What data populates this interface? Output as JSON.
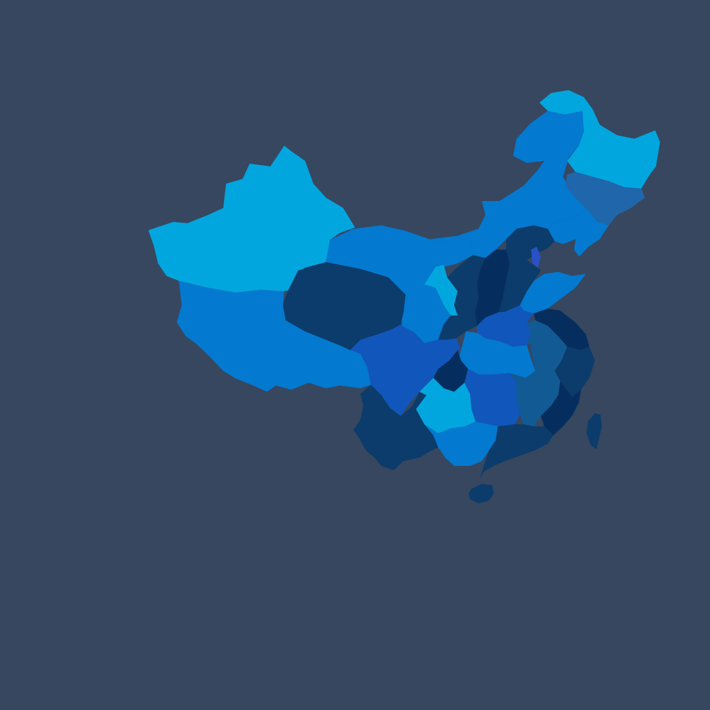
{
  "map": {
    "background_color": "#36475f",
    "palette": {
      "sky": "#02a6df",
      "azure": "#0379d0",
      "cobalt": "#1156bb",
      "steel": "#2066ab",
      "slate": "#125a93",
      "navy": "#0b3c6b",
      "midnight": "#052e5e",
      "indigo": "#2b51c7"
    },
    "regions": [
      {
        "name": "xinjiang",
        "color_key": "sky"
      },
      {
        "name": "tibet",
        "color_key": "azure"
      },
      {
        "name": "qinghai",
        "color_key": "navy"
      },
      {
        "name": "gansu",
        "color_key": "azure"
      },
      {
        "name": "inner-mongolia",
        "color_key": "azure"
      },
      {
        "name": "heilongjiang",
        "color_key": "sky"
      },
      {
        "name": "jilin",
        "color_key": "steel"
      },
      {
        "name": "liaoning",
        "color_key": "azure"
      },
      {
        "name": "hebei",
        "color_key": "navy"
      },
      {
        "name": "beijing",
        "color_key": "indigo"
      },
      {
        "name": "shanxi",
        "color_key": "midnight"
      },
      {
        "name": "ningxia",
        "color_key": "sky"
      },
      {
        "name": "shaanxi",
        "color_key": "navy"
      },
      {
        "name": "shandong",
        "color_key": "azure"
      },
      {
        "name": "henan",
        "color_key": "cobalt"
      },
      {
        "name": "jiangsu",
        "color_key": "midnight"
      },
      {
        "name": "anhui",
        "color_key": "slate"
      },
      {
        "name": "hubei",
        "color_key": "azure"
      },
      {
        "name": "chongqing",
        "color_key": "midnight"
      },
      {
        "name": "sichuan",
        "color_key": "cobalt"
      },
      {
        "name": "yunnan",
        "color_key": "navy"
      },
      {
        "name": "guizhou",
        "color_key": "sky"
      },
      {
        "name": "hunan",
        "color_key": "cobalt"
      },
      {
        "name": "jiangxi",
        "color_key": "slate"
      },
      {
        "name": "zhejiang",
        "color_key": "navy"
      },
      {
        "name": "fujian",
        "color_key": "midnight"
      },
      {
        "name": "guangxi",
        "color_key": "azure"
      },
      {
        "name": "guangdong",
        "color_key": "navy"
      },
      {
        "name": "hainan",
        "color_key": "navy"
      },
      {
        "name": "taiwan",
        "color_key": "navy"
      }
    ]
  }
}
